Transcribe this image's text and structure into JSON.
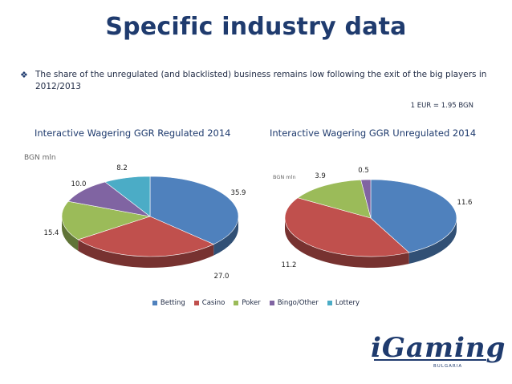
{
  "slide": {
    "title": "Specific industry data",
    "bullet": "The share of the unregulated (and blacklisted) business remains low following the exit of the big players in 2012/2013",
    "exchange_rate": "1 EUR = 1.95 BGN"
  },
  "colors": {
    "Betting": "#4f81bd",
    "Casino": "#c0504d",
    "Poker": "#9bbb59",
    "Bingo/Other": "#8064a2",
    "Lottery": "#4bacc6"
  },
  "chart_data": [
    {
      "type": "pie",
      "title": "Interactive Wagering GGR Regulated 2014",
      "unit_label": "BGN mln",
      "categories": [
        "Betting",
        "Casino",
        "Poker",
        "Bingo/Other",
        "Lottery"
      ],
      "values": [
        35.9,
        27.0,
        15.4,
        10.0,
        8.2
      ]
    },
    {
      "type": "pie",
      "title": "Interactive Wagering GGR Unregulated 2014",
      "unit_label": "BGN mln",
      "categories": [
        "Betting",
        "Casino",
        "Poker",
        "Bingo/Other"
      ],
      "values": [
        11.6,
        11.2,
        3.9,
        0.5
      ]
    }
  ],
  "legend": [
    {
      "label": "Betting",
      "color": "#4f81bd"
    },
    {
      "label": "Casino",
      "color": "#c0504d"
    },
    {
      "label": "Poker",
      "color": "#9bbb59"
    },
    {
      "label": "Bingo/Other",
      "color": "#8064a2"
    },
    {
      "label": "Lottery",
      "color": "#4bacc6"
    }
  ],
  "logo": {
    "word": "iGaming",
    "sub": "BULGARIA"
  }
}
